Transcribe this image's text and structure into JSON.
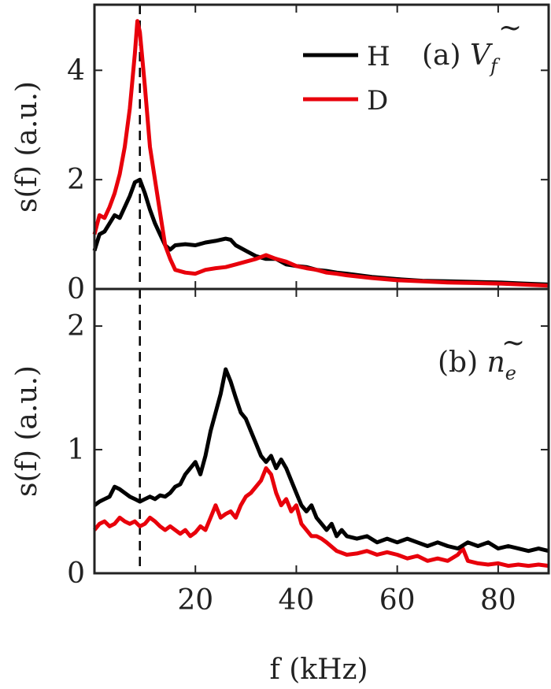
{
  "chart_data": [
    {
      "type": "line",
      "panel": "(a)",
      "annotation": {
        "prefix": "(a) ",
        "symbol": "V",
        "accent": "~",
        "subscript": "f"
      },
      "xlabel": "",
      "ylabel": "s(f) (a.u.)",
      "xlim": [
        0,
        90
      ],
      "ylim": [
        0,
        5.2
      ],
      "yticks": [
        0,
        2,
        4
      ],
      "xticks": [
        20,
        40,
        60,
        80
      ],
      "show_xtick_labels": false,
      "vline_x": 9,
      "legend": {
        "position": "top-right"
      },
      "series": [
        {
          "name": "H",
          "color": "#000000",
          "x": [
            0,
            1,
            2,
            3,
            4,
            5,
            6,
            7,
            8,
            9,
            10,
            11,
            12,
            13,
            14,
            15,
            16,
            18,
            20,
            22,
            24,
            26,
            27,
            28,
            30,
            32,
            34,
            36,
            38,
            40,
            42,
            44,
            46,
            48,
            50,
            55,
            60,
            65,
            70,
            75,
            80,
            85,
            90
          ],
          "y": [
            0.7,
            1.0,
            1.05,
            1.2,
            1.35,
            1.3,
            1.5,
            1.7,
            1.95,
            2.0,
            1.75,
            1.45,
            1.2,
            1.0,
            0.8,
            0.72,
            0.8,
            0.82,
            0.8,
            0.85,
            0.88,
            0.92,
            0.9,
            0.8,
            0.7,
            0.6,
            0.55,
            0.55,
            0.45,
            0.42,
            0.4,
            0.35,
            0.33,
            0.3,
            0.28,
            0.22,
            0.18,
            0.15,
            0.14,
            0.13,
            0.12,
            0.1,
            0.08
          ]
        },
        {
          "name": "D",
          "color": "#e8000b",
          "x": [
            0,
            1,
            2,
            3,
            4,
            5,
            6,
            7,
            8,
            8.5,
            9,
            10,
            11,
            12,
            13,
            14,
            15,
            16,
            18,
            20,
            22,
            24,
            26,
            28,
            30,
            32,
            34,
            36,
            38,
            40,
            42,
            44,
            46,
            48,
            50,
            55,
            60,
            65,
            70,
            75,
            80,
            85,
            90
          ],
          "y": [
            1.0,
            1.35,
            1.3,
            1.5,
            1.75,
            2.1,
            2.6,
            3.3,
            4.3,
            4.9,
            4.7,
            3.7,
            2.6,
            2.0,
            1.4,
            0.8,
            0.55,
            0.35,
            0.3,
            0.28,
            0.35,
            0.38,
            0.4,
            0.45,
            0.5,
            0.55,
            0.62,
            0.55,
            0.5,
            0.42,
            0.38,
            0.35,
            0.3,
            0.28,
            0.25,
            0.2,
            0.16,
            0.14,
            0.12,
            0.11,
            0.1,
            0.08,
            0.06
          ]
        }
      ]
    },
    {
      "type": "line",
      "panel": "(b)",
      "annotation": {
        "prefix": "(b) ",
        "symbol": "n",
        "accent": "~",
        "subscript": "e"
      },
      "xlabel": "f (kHz)",
      "ylabel": "s(f) (a.u.)",
      "xlim": [
        0,
        90
      ],
      "ylim": [
        0,
        2.3
      ],
      "yticks": [
        0,
        1,
        2
      ],
      "xticks": [
        20,
        40,
        60,
        80
      ],
      "show_xtick_labels": true,
      "vline_x": 9,
      "series": [
        {
          "name": "H",
          "color": "#000000",
          "x": [
            0,
            1,
            2,
            3,
            4,
            5,
            6,
            7,
            8,
            9,
            10,
            11,
            12,
            13,
            14,
            15,
            16,
            17,
            18,
            19,
            20,
            21,
            22,
            23,
            24,
            25,
            26,
            27,
            28,
            29,
            30,
            31,
            32,
            33,
            34,
            35,
            36,
            37,
            38,
            39,
            40,
            41,
            42,
            43,
            44,
            45,
            46,
            47,
            48,
            49,
            50,
            52,
            54,
            56,
            58,
            60,
            62,
            64,
            66,
            68,
            70,
            72,
            74,
            76,
            78,
            80,
            82,
            84,
            86,
            88,
            90
          ],
          "y": [
            0.55,
            0.58,
            0.6,
            0.62,
            0.7,
            0.68,
            0.65,
            0.62,
            0.6,
            0.58,
            0.6,
            0.62,
            0.6,
            0.63,
            0.62,
            0.65,
            0.7,
            0.72,
            0.8,
            0.85,
            0.9,
            0.8,
            0.95,
            1.15,
            1.3,
            1.45,
            1.65,
            1.55,
            1.42,
            1.3,
            1.25,
            1.15,
            1.05,
            0.95,
            0.9,
            0.95,
            0.85,
            0.92,
            0.85,
            0.75,
            0.65,
            0.55,
            0.5,
            0.55,
            0.45,
            0.4,
            0.35,
            0.4,
            0.3,
            0.35,
            0.3,
            0.28,
            0.3,
            0.25,
            0.28,
            0.25,
            0.28,
            0.25,
            0.22,
            0.25,
            0.22,
            0.2,
            0.25,
            0.22,
            0.25,
            0.2,
            0.22,
            0.2,
            0.18,
            0.2,
            0.18
          ]
        },
        {
          "name": "D",
          "color": "#e8000b",
          "x": [
            0,
            1,
            2,
            3,
            4,
            5,
            6,
            7,
            8,
            9,
            10,
            11,
            12,
            13,
            14,
            15,
            16,
            17,
            18,
            19,
            20,
            21,
            22,
            23,
            24,
            25,
            26,
            27,
            28,
            29,
            30,
            31,
            32,
            33,
            34,
            35,
            36,
            37,
            38,
            39,
            40,
            41,
            42,
            43,
            44,
            45,
            46,
            48,
            50,
            52,
            54,
            56,
            58,
            60,
            62,
            64,
            66,
            68,
            70,
            72,
            73,
            74,
            76,
            78,
            80,
            82,
            84,
            86,
            88,
            90
          ],
          "y": [
            0.35,
            0.4,
            0.42,
            0.38,
            0.4,
            0.45,
            0.42,
            0.4,
            0.42,
            0.38,
            0.4,
            0.45,
            0.42,
            0.38,
            0.35,
            0.38,
            0.35,
            0.32,
            0.35,
            0.3,
            0.33,
            0.38,
            0.35,
            0.45,
            0.55,
            0.45,
            0.48,
            0.5,
            0.45,
            0.55,
            0.62,
            0.65,
            0.7,
            0.75,
            0.85,
            0.8,
            0.65,
            0.55,
            0.6,
            0.5,
            0.55,
            0.4,
            0.35,
            0.3,
            0.3,
            0.28,
            0.25,
            0.18,
            0.15,
            0.16,
            0.18,
            0.15,
            0.17,
            0.15,
            0.12,
            0.14,
            0.1,
            0.12,
            0.1,
            0.15,
            0.2,
            0.1,
            0.08,
            0.07,
            0.08,
            0.06,
            0.07,
            0.06,
            0.07,
            0.06
          ]
        }
      ]
    }
  ]
}
